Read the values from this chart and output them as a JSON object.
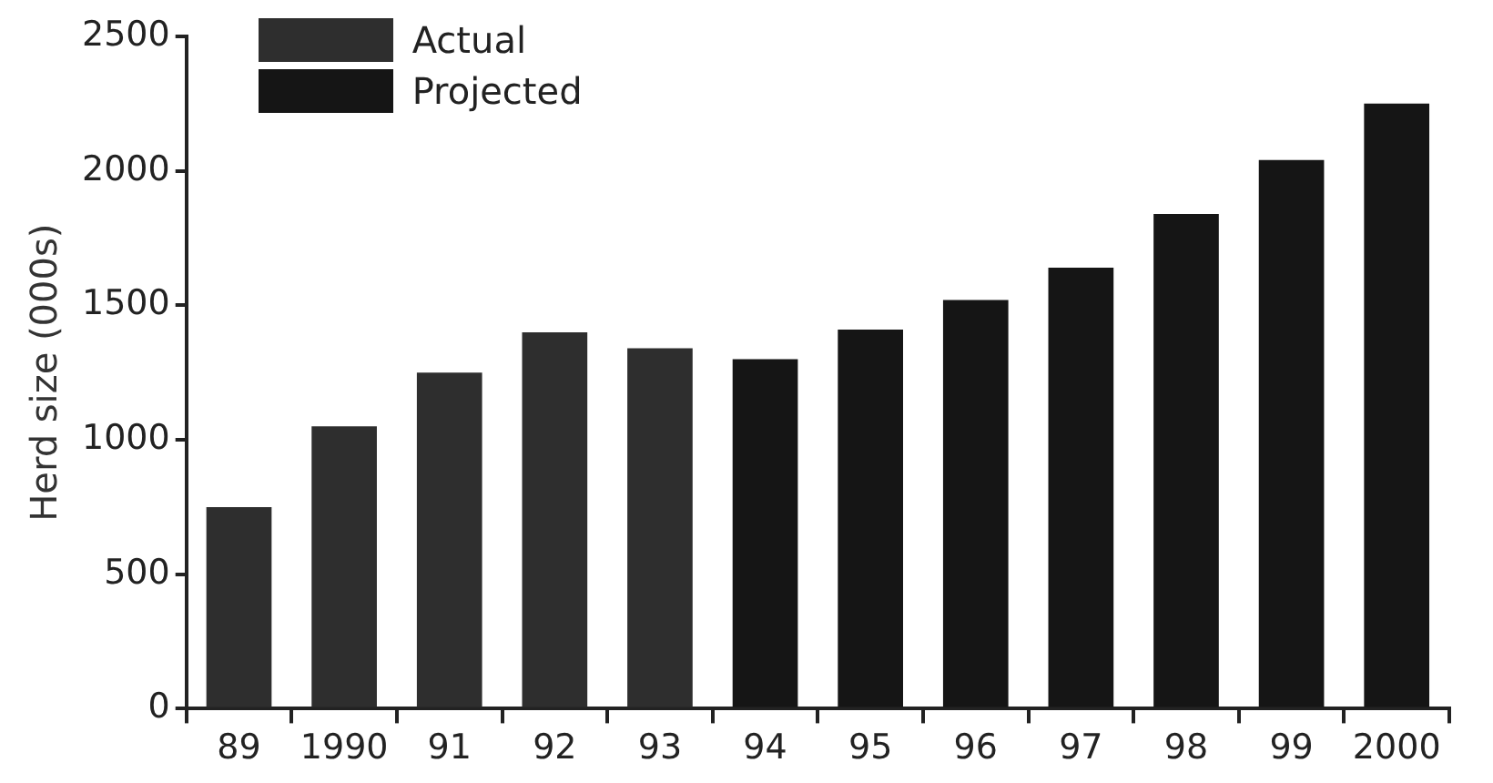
{
  "chart_data": {
    "type": "bar",
    "ylabel": "Herd size (000s)",
    "categories": [
      "89",
      "1990",
      "91",
      "92",
      "93",
      "94",
      "95",
      "96",
      "97",
      "98",
      "99",
      "2000"
    ],
    "series": [
      {
        "name": "Actual",
        "color": "#2e2e2e",
        "values": [
          750,
          1050,
          1250,
          1400,
          1340,
          null,
          null,
          null,
          null,
          null,
          null,
          null
        ]
      },
      {
        "name": "Projected",
        "color": "#151515",
        "values": [
          null,
          null,
          null,
          null,
          null,
          1300,
          1410,
          1520,
          1640,
          1840,
          2040,
          2250
        ]
      }
    ],
    "ylim": [
      0,
      2500
    ],
    "yticks": [
      0,
      500,
      1000,
      1500,
      2000,
      2500
    ],
    "grid": false,
    "legend": "top left"
  }
}
